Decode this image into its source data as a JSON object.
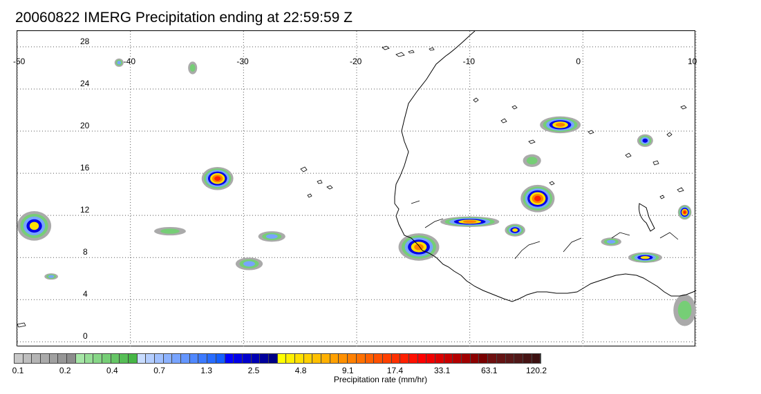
{
  "title": "20060822 IMERG Precipitation ending at 22:59:59 Z",
  "map": {
    "lon_ticks": [
      "-50",
      "-40",
      "-30",
      "-20",
      "-10",
      "0",
      "10"
    ],
    "lat_ticks": [
      "0",
      "4",
      "8",
      "12",
      "16",
      "20",
      "24",
      "28"
    ],
    "lon_range": [
      -50,
      10
    ],
    "lat_range": [
      -0.5,
      29.5
    ],
    "gridlines": true,
    "coastline_color": "#000000",
    "gridline_color": "#555555"
  },
  "precip_cells": [
    {
      "lon": -32.3,
      "lat": 15.5,
      "rx": 1.4,
      "ry": 1.1,
      "peak": 6
    },
    {
      "lon": -14.5,
      "lat": 9.0,
      "rx": 1.8,
      "ry": 1.3,
      "peak": 5
    },
    {
      "lon": -10.0,
      "lat": 11.4,
      "rx": 2.6,
      "ry": 0.5,
      "peak": 5
    },
    {
      "lon": -4.0,
      "lat": 13.6,
      "rx": 1.5,
      "ry": 1.3,
      "peak": 6
    },
    {
      "lon": -2.0,
      "lat": 20.6,
      "rx": 1.8,
      "ry": 0.8,
      "peak": 5
    },
    {
      "lon": -6.0,
      "lat": 10.6,
      "rx": 0.9,
      "ry": 0.6,
      "peak": 4
    },
    {
      "lon": 5.5,
      "lat": 8.0,
      "rx": 1.5,
      "ry": 0.5,
      "peak": 4
    },
    {
      "lon": 9.0,
      "lat": 12.3,
      "rx": 0.6,
      "ry": 0.7,
      "peak": 6
    },
    {
      "lon": -48.5,
      "lat": 11.0,
      "rx": 1.5,
      "ry": 1.4,
      "peak": 4
    },
    {
      "lon": -27.5,
      "lat": 10.0,
      "rx": 1.2,
      "ry": 0.5,
      "peak": 2
    },
    {
      "lon": -29.5,
      "lat": 7.4,
      "rx": 1.2,
      "ry": 0.6,
      "peak": 2
    },
    {
      "lon": 5.5,
      "lat": 19.1,
      "rx": 0.7,
      "ry": 0.6,
      "peak": 3
    },
    {
      "lon": -36.5,
      "lat": 10.5,
      "rx": 1.4,
      "ry": 0.4,
      "peak": 1
    },
    {
      "lon": -47.0,
      "lat": 6.2,
      "rx": 0.6,
      "ry": 0.3,
      "peak": 2
    },
    {
      "lon": -4.5,
      "lat": 17.2,
      "rx": 0.8,
      "ry": 0.6,
      "peak": 1
    },
    {
      "lon": 2.5,
      "lat": 9.5,
      "rx": 0.9,
      "ry": 0.4,
      "peak": 2
    },
    {
      "lon": 9.0,
      "lat": 3.0,
      "rx": 1.0,
      "ry": 1.5,
      "peak": 1
    },
    {
      "lon": -41.0,
      "lat": 26.5,
      "rx": 0.4,
      "ry": 0.4,
      "peak": 2
    },
    {
      "lon": -34.5,
      "lat": 26.0,
      "rx": 0.4,
      "ry": 0.6,
      "peak": 1
    }
  ],
  "colorbar": {
    "colors": [
      "#c8c8c8",
      "#bebebe",
      "#b4b4b4",
      "#aaaaaa",
      "#a0a0a0",
      "#969696",
      "#8c8c8c",
      "#a6e6a6",
      "#96de96",
      "#86d686",
      "#76ce76",
      "#66c666",
      "#56be56",
      "#46b646",
      "#c8dcff",
      "#b4ceff",
      "#a0c0ff",
      "#8cb2ff",
      "#78a4ff",
      "#6496ff",
      "#5088ff",
      "#3c7aff",
      "#286cff",
      "#145eff",
      "#0000ff",
      "#0000e6",
      "#0000cc",
      "#0000b4",
      "#00009c",
      "#000084",
      "#ffff00",
      "#fff000",
      "#ffe000",
      "#ffd000",
      "#ffc000",
      "#ffb000",
      "#ffa000",
      "#ff9000",
      "#ff8000",
      "#ff7000",
      "#ff6000",
      "#ff5000",
      "#ff4000",
      "#ff3000",
      "#ff2000",
      "#ff1000",
      "#ff0000",
      "#f00000",
      "#dc0000",
      "#c80000",
      "#b40000",
      "#a00000",
      "#8c0000",
      "#780000",
      "#6e1010",
      "#641414",
      "#5a1818",
      "#501818",
      "#461414",
      "#3c1010"
    ],
    "labels": [
      "0.1",
      "0.2",
      "0.4",
      "0.7",
      "1.3",
      "2.5",
      "4.8",
      "9.1",
      "17.4",
      "33.1",
      "63.1",
      "120.2"
    ],
    "title": "Precipitation rate (mm/hr)"
  }
}
